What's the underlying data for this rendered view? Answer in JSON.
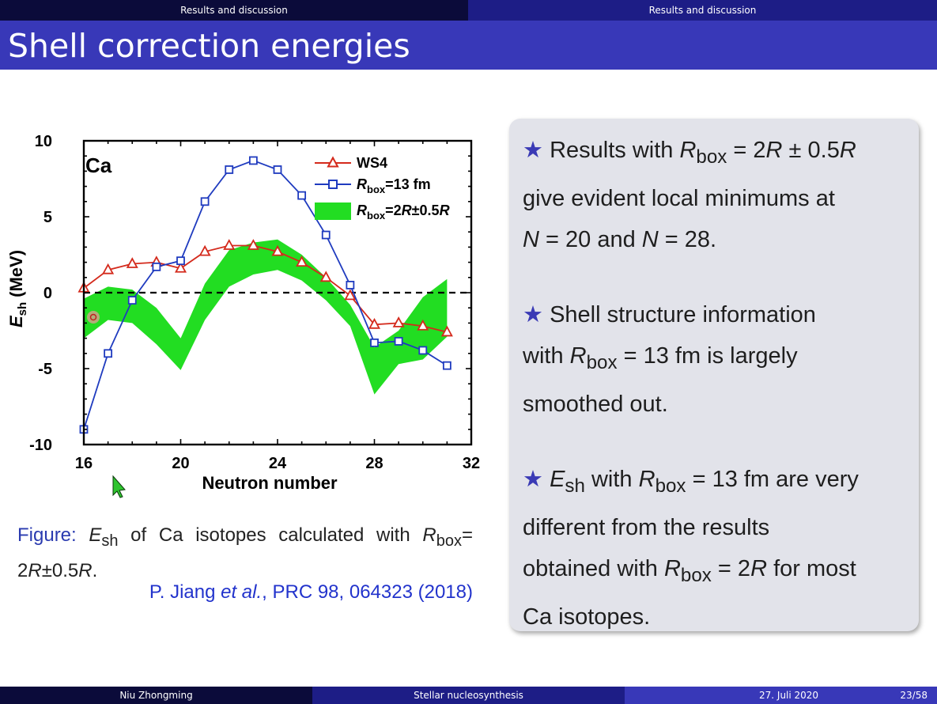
{
  "nav": {
    "left_section": "Results and discussion",
    "right_section": "Results and discussion"
  },
  "title": "Shell correction energies",
  "chart_data": {
    "type": "line",
    "panel_label": "Ca",
    "xlabel": "Neutron number",
    "ylabel": "E",
    "ylabel_sub": "sh",
    "ylabel_unit": "(MeV)",
    "xlim": [
      16,
      32
    ],
    "ylim": [
      -10,
      10
    ],
    "xticks": [
      16,
      20,
      24,
      28,
      32
    ],
    "yticks": [
      10,
      5,
      0,
      -5,
      -10
    ],
    "x": [
      16,
      17,
      18,
      19,
      20,
      21,
      22,
      23,
      24,
      25,
      26,
      27,
      28,
      29,
      30,
      31
    ],
    "series": [
      {
        "name": "WS4",
        "marker": "triangle",
        "color": "#d42a1c",
        "values": [
          0.3,
          1.5,
          1.9,
          2.0,
          1.6,
          2.7,
          3.1,
          3.1,
          2.7,
          2.0,
          1.0,
          -0.2,
          -2.1,
          -2.0,
          -2.2,
          -2.6
        ]
      },
      {
        "name": "Rbox=13 fm",
        "marker": "square",
        "color": "#1f3bbf",
        "values": [
          -9.0,
          -4.0,
          -0.5,
          1.7,
          2.1,
          6.0,
          8.1,
          8.7,
          8.1,
          6.4,
          3.8,
          0.5,
          -3.3,
          -3.2,
          -3.8,
          -4.8
        ]
      },
      {
        "name": "Rbox=2R±0.5R",
        "type": "band",
        "color": "#22dd22",
        "upper": [
          -0.4,
          0.4,
          0.2,
          -1.0,
          -3.0,
          0.6,
          2.8,
          3.3,
          3.5,
          2.5,
          1.0,
          -0.8,
          -3.6,
          -2.5,
          -0.3,
          0.9
        ],
        "lower": [
          -3.0,
          -1.8,
          -2.0,
          -3.4,
          -5.1,
          -1.8,
          0.4,
          1.2,
          1.5,
          0.8,
          -0.5,
          -2.2,
          -6.7,
          -4.7,
          -4.4,
          -2.9
        ]
      }
    ],
    "legend": [
      {
        "label": "WS4"
      },
      {
        "label_main": "R",
        "label_sub": "box",
        "label_rest": "=13 fm"
      },
      {
        "label_main": "R",
        "label_sub": "box",
        "label_rest": "=2",
        "label_italic": "R",
        "label_tail": "±0.5",
        "label_end": "R"
      }
    ]
  },
  "caption": {
    "label": "Figure:",
    "e": "E",
    "e_sub": "sh",
    "text1": " of Ca isotopes calculated with",
    "r": "R",
    "r_sub": "box",
    "text2": "= 2",
    "r2": "R",
    "text3": "±0.5",
    "r3": "R",
    "text4": "."
  },
  "reference": {
    "authors": "P. Jiang ",
    "etal": "et al.",
    "rest": ", PRC 98, 064323 (2018)"
  },
  "bullets": {
    "star": "★",
    "b1": {
      "a": "Results with ",
      "R": "R",
      "sub": "box",
      "b": " = 2",
      "R2": "R",
      "c": " ± 0.5",
      "R3": "R",
      "d": "give evident local minimums at",
      "N1": "N",
      "e": " = 20 and ",
      "N2": "N",
      "f": " = 28."
    },
    "b2": {
      "a": "Shell structure information",
      "b": "with ",
      "R": "R",
      "sub": "box",
      "c": " = 13 fm  is largely",
      "d": "smoothed out."
    },
    "b3": {
      "E": "E",
      "esub": "sh",
      "a": " with ",
      "R": "R",
      "sub": "box",
      "b": " = 13 fm are very",
      "c": "different from the results",
      "d": "obtained with ",
      "R2": "R",
      "sub2": "box",
      "e": " = 2",
      "R3": "R",
      "f": " for most",
      "g": "Ca isotopes."
    }
  },
  "footer": {
    "author": "Niu Zhongming",
    "talk": "Stellar nucleosynthesis",
    "date": "27. Juli 2020",
    "page": "23/58"
  }
}
